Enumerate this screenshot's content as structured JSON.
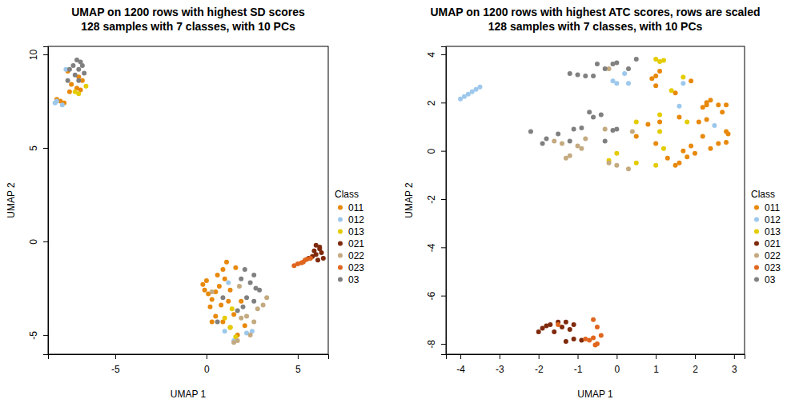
{
  "chart_data": [
    {
      "type": "scatter",
      "title": "UMAP on 1200 rows with highest SD scores",
      "subtitle": "128 samples with 7 classes, with 10 PCs",
      "x_label": "UMAP 1",
      "y_label": "UMAP 2",
      "legend_title": "Class",
      "legend": "right",
      "xlim": [
        -8.68,
        6.67
      ],
      "ylim": [
        -6.03,
        10.43
      ],
      "xticks": [
        -5,
        0,
        5
      ],
      "yticks": [
        -5,
        0,
        5,
        10
      ],
      "series": [
        {
          "name": "011",
          "color": "#e8890c",
          "x": [
            -7.6,
            -7.0,
            -6.8,
            -7.4,
            -7.1,
            -6.9,
            -7.5,
            -8.0,
            -7.8,
            -8.2,
            -0.2,
            0,
            -0.1,
            0.1,
            0.3,
            0.2,
            0.5,
            0.6,
            0.9,
            1.0,
            0.7,
            1.3,
            1.2,
            0.8,
            0.5,
            0.9,
            1.5,
            1.3,
            1.7,
            2.1,
            1.1,
            1.6,
            0.3,
            1.9
          ],
          "values": [
            9.1,
            8.8,
            8.6,
            8.4,
            8.2,
            8.1,
            8.0,
            7.5,
            7.4,
            7.6,
            -2.3,
            -2.1,
            -2.6,
            -2.8,
            -3.1,
            -3.5,
            -2.7,
            -1.8,
            -1.5,
            -2.0,
            -2.4,
            -2.6,
            -3.2,
            -3.4,
            -4.0,
            -4.3,
            -3.9,
            -4.6,
            -5.0,
            -4.5,
            -1.1,
            -1.4,
            -4.3,
            -3.2
          ]
        },
        {
          "name": "012",
          "color": "#9dc8ec",
          "x": [
            -7.7,
            -8.2,
            -8.3,
            -7.9,
            1.2,
            1.5,
            2.5,
            1.0,
            2.2
          ],
          "values": [
            9.2,
            7.5,
            7.4,
            7.3,
            -2.2,
            -5.3,
            -4.8,
            -4.8,
            -4.9
          ]
        },
        {
          "name": "013",
          "color": "#e4cc00",
          "x": [
            -7.2,
            -6.6,
            -7.0,
            1.3,
            1.6,
            1.0,
            1.4
          ],
          "values": [
            8.0,
            8.3,
            7.9,
            -4.6,
            -5.1,
            -4.1,
            -3.6
          ]
        },
        {
          "name": "021",
          "color": "#7f2a0c",
          "x": [
            6.0,
            6.2,
            5.9,
            6.3,
            6.0,
            6.4,
            5.8,
            6.1,
            5.6,
            6.2
          ],
          "values": [
            -0.2,
            -0.3,
            -0.5,
            -0.6,
            -0.7,
            -0.9,
            -0.8,
            -1.0,
            -0.9,
            -0.4
          ]
        },
        {
          "name": "022",
          "color": "#c4aa80",
          "x": [
            1.5,
            1.7,
            2.2,
            2.6,
            3.1,
            3.3,
            2.8,
            0.3,
            1.9,
            2.4,
            1.8
          ],
          "values": [
            -5.4,
            -5.3,
            -4.0,
            -4.3,
            -3.4,
            -3.0,
            -3.6,
            -2.7,
            -4.1,
            -5.0,
            -2.4
          ]
        },
        {
          "name": "023",
          "color": "#e0661f",
          "x": [
            4.8,
            5.0,
            5.2,
            5.4,
            5.5,
            5.3,
            5.7
          ],
          "values": [
            -1.3,
            -1.2,
            -1.15,
            -1.0,
            -0.95,
            -1.1,
            -0.9
          ]
        },
        {
          "name": "03",
          "color": "#808080",
          "x": [
            -7.1,
            -6.9,
            -7.3,
            -6.8,
            -7.5,
            -7.0,
            -6.7,
            -7.2,
            -7.6,
            -7.0,
            2.1,
            2.6,
            2.4,
            2.9,
            2.6,
            2.2,
            1.9,
            2.7,
            0.9,
            0.6,
            2.0,
            1.7
          ],
          "values": [
            9.7,
            9.6,
            9.4,
            9.4,
            9.2,
            9.2,
            9.0,
            8.9,
            8.6,
            8.6,
            -1.5,
            -1.8,
            -2.2,
            -2.6,
            -3.2,
            -3.0,
            -2.0,
            -2.5,
            -3.0,
            -4.3,
            -3.5,
            -3.7
          ]
        }
      ]
    },
    {
      "type": "scatter",
      "title": "UMAP on 1200 rows with highest ATC scores, rows are scaled",
      "subtitle": "128 samples with 7 classes, with 10 PCs",
      "x_label": "UMAP 1",
      "y_label": "UMAP 2",
      "legend_title": "Class",
      "legend": "right",
      "xlim": [
        -4.37,
        3.27
      ],
      "ylim": [
        -8.43,
        4.33
      ],
      "xticks": [
        -4,
        -3,
        -2,
        -1,
        0,
        1,
        2,
        3
      ],
      "yticks": [
        -8,
        -6,
        -4,
        -2,
        0,
        2,
        4
      ],
      "series": [
        {
          "name": "011",
          "color": "#e8890c",
          "x": [
            1.0,
            0.9,
            1.1,
            1.0,
            1.9,
            1.5,
            2.3,
            2.3,
            2.4,
            2.2,
            2.6,
            2.8,
            2.1,
            2.3,
            2.7,
            1.6,
            2.8,
            2.85,
            2.8,
            2.6,
            2.4,
            1.9,
            2.0,
            1.6,
            1.5,
            1.3,
            1.0,
            0.8,
            0.5,
            1.1,
            1.7,
            2.2,
            1.8
          ],
          "values": [
            3.1,
            3.0,
            3.3,
            2.7,
            2.9,
            2.4,
            1.9,
            2.0,
            2.1,
            1.8,
            1.9,
            1.9,
            1.2,
            1.3,
            1.6,
            1.4,
            0.8,
            0.7,
            0.35,
            0.3,
            0.1,
            0.2,
            -0.1,
            -0.5,
            -0.6,
            -0.3,
            0.3,
            1.1,
            0.6,
            1.2,
            0.0,
            0.6,
            -0.25
          ]
        },
        {
          "name": "012",
          "color": "#9dc8ec",
          "x": [
            -4.0,
            -3.9,
            -3.8,
            -3.7,
            -3.6,
            -3.5,
            0.0,
            0.3,
            1.6,
            2.5,
            0.2,
            -0.1,
            1.7
          ],
          "values": [
            2.15,
            2.25,
            2.35,
            2.45,
            2.55,
            2.65,
            2.8,
            2.8,
            1.85,
            1.05,
            3.2,
            2.9,
            2.8
          ]
        },
        {
          "name": "013",
          "color": "#e4cc00",
          "x": [
            1.0,
            1.1,
            1.2,
            1.7,
            1.4,
            1.1,
            1.8,
            0.5,
            1.1,
            1.2,
            0.0,
            -0.2,
            1.0,
            0.5
          ],
          "values": [
            3.8,
            3.7,
            3.75,
            3.05,
            2.5,
            1.5,
            1.2,
            1.2,
            0.8,
            0.1,
            -0.1,
            -0.4,
            -0.6,
            -0.5
          ]
        },
        {
          "name": "021",
          "color": "#7f2a0c",
          "x": [
            -2.0,
            -1.9,
            -1.8,
            -1.7,
            -1.5,
            -1.3,
            -1.4,
            -1.6,
            -1.2,
            -1.3,
            -1.1,
            -0.9,
            -1.1
          ],
          "values": [
            -7.5,
            -7.35,
            -7.25,
            -7.2,
            -7.1,
            -7.1,
            -7.3,
            -7.5,
            -7.4,
            -7.9,
            -7.8,
            -7.85,
            -7.2
          ]
        },
        {
          "name": "022",
          "color": "#c4aa80",
          "x": [
            -1.6,
            -1.4,
            -1.0,
            -0.8,
            -0.9,
            -1.3,
            -1.2,
            -0.2,
            0,
            0.3,
            -0.3,
            -0.2,
            0.4
          ],
          "values": [
            0.4,
            0.3,
            0.2,
            0.5,
            0.1,
            -0.3,
            -0.2,
            -0.5,
            -0.6,
            -0.75,
            0.9,
            3.4,
            0.8
          ]
        },
        {
          "name": "023",
          "color": "#e0661f",
          "x": [
            -0.8,
            -0.7,
            -0.6,
            -0.6,
            -0.5,
            -0.4,
            -0.5,
            -0.55,
            -1.5
          ],
          "values": [
            -7.8,
            -7.85,
            -7.75,
            -7.0,
            -7.3,
            -7.65,
            -8.0,
            -8.05,
            -7.2
          ]
        },
        {
          "name": "03",
          "color": "#808080",
          "x": [
            -1.2,
            -1.0,
            -0.8,
            -0.6,
            -0.5,
            -0.3,
            -0.1,
            0,
            0.5,
            0.3,
            -0.7,
            -0.6,
            -0.4,
            -1.1,
            -0.9,
            -2.2,
            -1.8,
            -1.5,
            -0.1,
            0,
            -1.9,
            -0.3,
            -1.2
          ],
          "values": [
            3.2,
            3.15,
            3.1,
            3.1,
            3.6,
            3.4,
            3.6,
            3.65,
            3.8,
            3.4,
            1.6,
            1.4,
            1.5,
            0.9,
            0.95,
            0.8,
            0.5,
            0.7,
            0.85,
            0.9,
            0.3,
            0.4,
            0.4
          ]
        }
      ]
    }
  ]
}
